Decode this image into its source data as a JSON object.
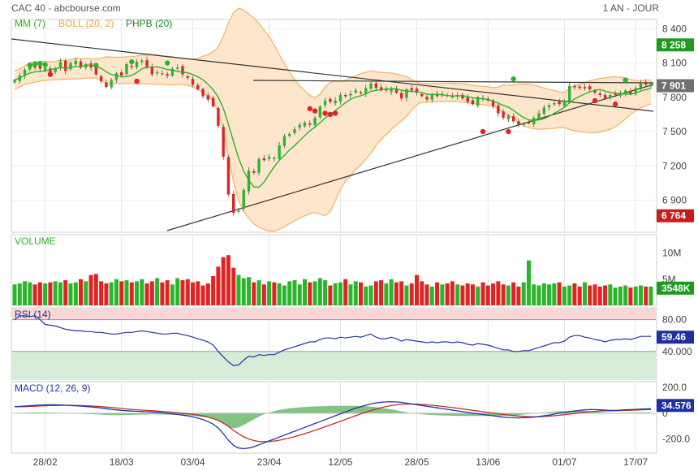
{
  "header": {
    "left": "CAC 40 - abcbourse.com",
    "right": "1 AN - JOUR"
  },
  "colors": {
    "mm": "#2ab52a",
    "boll_line": "#f2b266",
    "boll_fill": "#fde6cc",
    "up": "#2ab52a",
    "down": "#e02424",
    "rsi_top": "#fbd6d6",
    "rsi_bottom": "#d7ecd7",
    "rsi_line": "#2434a8",
    "macd_line": "#2434a8",
    "signal_line": "#c0302a",
    "hist": "#6cb86c",
    "badge_gray": "#707070",
    "badge_green": "#1e9a1e",
    "badge_red": "#c41e1e",
    "badge_blue": "#1f2fa0"
  },
  "chart_data": [
    {
      "type": "candlestick",
      "legend": [
        {
          "label": "MM (7)",
          "color": "#2ab52a"
        },
        {
          "label": "BOLL (20, 2)",
          "color": "#f2a64a"
        },
        {
          "label": "PHPB (20)",
          "color": "#1e8a1e"
        }
      ],
      "x_tick_labels": [
        "28/02",
        "18/03",
        "03/04",
        "23/04",
        "12/05",
        "28/05",
        "13/06",
        "01/07",
        "17/07"
      ],
      "y_ticks": [
        8400,
        8100,
        7800,
        7500,
        7200,
        6900
      ],
      "ylim": [
        6620,
        8480
      ],
      "badges": [
        {
          "label": "8 258",
          "value": 8258,
          "color": "green"
        },
        {
          "label": "7 901",
          "value": 7901,
          "color": "gray"
        },
        {
          "label": "6 764",
          "value": 6764,
          "color": "red"
        }
      ],
      "close": [
        7950,
        7990,
        8040,
        8070,
        8060,
        8050,
        8060,
        8020,
        8050,
        8110,
        8030,
        8100,
        8120,
        8060,
        8090,
        8060,
        8000,
        7940,
        7890,
        7950,
        8010,
        7990,
        8090,
        8070,
        8110,
        8120,
        8060,
        8000,
        8020,
        8010,
        7990,
        8050,
        8060,
        8000,
        7970,
        7910,
        7870,
        7810,
        7780,
        7720,
        7550,
        7280,
        6950,
        6790,
        6810,
        6990,
        7160,
        7140,
        7260,
        7250,
        7280,
        7270,
        7380,
        7460,
        7480,
        7520,
        7560,
        7580,
        7560,
        7620,
        7720,
        7770,
        7760,
        7770,
        7820,
        7810,
        7830,
        7860,
        7840,
        7880,
        7920,
        7880,
        7860,
        7860,
        7880,
        7840,
        7790,
        7870,
        7860,
        7840,
        7810,
        7780,
        7820,
        7810,
        7830,
        7820,
        7810,
        7820,
        7790,
        7760,
        7740,
        7800,
        7790,
        7770,
        7720,
        7660,
        7620,
        7640,
        7590,
        7560,
        7570,
        7580,
        7620,
        7660,
        7710,
        7730,
        7750,
        7740,
        7770,
        7900,
        7890,
        7880,
        7880,
        7870,
        7840,
        7820,
        7790,
        7820,
        7830,
        7840,
        7860,
        7830,
        7880,
        7920,
        7910,
        7920
      ],
      "volume_ticks": [
        "10M",
        "5M"
      ],
      "volume_badge": "3548K",
      "volume_share_of_10M": [
        0.4,
        0.42,
        0.46,
        0.44,
        0.4,
        0.44,
        0.42,
        0.44,
        0.46,
        0.44,
        0.48,
        0.42,
        0.44,
        0.5,
        0.46,
        0.58,
        0.6,
        0.46,
        0.42,
        0.44,
        0.5,
        0.46,
        0.48,
        0.44,
        0.46,
        0.5,
        0.42,
        0.46,
        0.52,
        0.44,
        0.48,
        0.4,
        0.52,
        0.48,
        0.5,
        0.44,
        0.46,
        0.38,
        0.42,
        0.56,
        0.74,
        0.92,
        0.96,
        0.72,
        0.58,
        0.52,
        0.54,
        0.44,
        0.48,
        0.4,
        0.46,
        0.44,
        0.42,
        0.38,
        0.46,
        0.48,
        0.4,
        0.5,
        0.44,
        0.46,
        0.52,
        0.48,
        0.38,
        0.42,
        0.44,
        0.5,
        0.4,
        0.46,
        0.44,
        0.36,
        0.38,
        0.46,
        0.48,
        0.42,
        0.5,
        0.44,
        0.46,
        0.38,
        0.42,
        0.58,
        0.46,
        0.4,
        0.36,
        0.44,
        0.4,
        0.42,
        0.46,
        0.4,
        0.38,
        0.42,
        0.4,
        0.36,
        0.44,
        0.38,
        0.42,
        0.46,
        0.4,
        0.38,
        0.44,
        0.36,
        0.44,
        0.86,
        0.4,
        0.38,
        0.42,
        0.4,
        0.42,
        0.44,
        0.36,
        0.38,
        0.42,
        0.36,
        0.44,
        0.38,
        0.4,
        0.36,
        0.38,
        0.4,
        0.34,
        0.36,
        0.38,
        0.34,
        0.36,
        0.38,
        0.36,
        0.36
      ],
      "rsi": {
        "label": "RSI (14)",
        "ticks": [
          80.0,
          40.0
        ],
        "tick_labels": [
          "80.00",
          "40.000"
        ],
        "ylim": [
          5,
          95
        ],
        "badge": "59.46",
        "values": [
          80,
          85,
          85,
          84,
          85,
          80,
          74,
          73,
          72,
          70,
          68,
          67,
          66,
          66,
          65,
          65,
          64,
          64,
          63,
          62,
          62,
          63,
          64,
          64,
          65,
          66,
          65,
          64,
          63,
          62,
          62,
          63,
          63,
          61,
          60,
          58,
          56,
          54,
          52,
          48,
          40,
          33,
          27,
          22,
          23,
          29,
          34,
          33,
          36,
          35,
          36,
          36,
          39,
          42,
          44,
          46,
          48,
          50,
          52,
          52,
          55,
          57,
          57,
          56,
          58,
          57,
          58,
          59,
          58,
          60,
          62,
          58,
          56,
          56,
          58,
          56,
          53,
          55,
          54,
          53,
          52,
          51,
          52,
          51,
          52,
          52,
          51,
          52,
          51,
          49,
          48,
          50,
          49,
          48,
          46,
          44,
          42,
          42,
          40,
          40,
          41,
          41,
          43,
          45,
          47,
          49,
          51,
          51,
          53,
          58,
          60,
          60,
          58,
          57,
          55,
          54,
          52,
          54,
          55,
          55,
          56,
          55,
          57,
          59,
          59,
          59
        ]
      },
      "macd": {
        "label": "MACD (12, 26, 9)",
        "ticks": [
          200.0,
          0,
          -200.0
        ],
        "tick_labels": [
          "200.0",
          "0",
          "-200.0"
        ],
        "ylim": [
          -310,
          245
        ],
        "badge": "34.576",
        "macd": [
          50,
          53,
          56,
          58,
          61,
          63,
          65,
          65,
          65,
          64,
          62,
          60,
          58,
          55,
          52,
          49,
          45,
          40,
          35,
          30,
          26,
          22,
          19,
          17,
          15,
          13,
          11,
          9,
          7,
          4,
          0,
          -5,
          -10,
          -15,
          -20,
          -28,
          -38,
          -50,
          -65,
          -85,
          -115,
          -160,
          -210,
          -250,
          -270,
          -275,
          -270,
          -260,
          -245,
          -230,
          -215,
          -200,
          -185,
          -170,
          -155,
          -140,
          -125,
          -110,
          -95,
          -80,
          -65,
          -50,
          -35,
          -20,
          -5,
          10,
          25,
          38,
          50,
          62,
          72,
          80,
          85,
          88,
          90,
          88,
          84,
          78,
          72,
          66,
          60,
          54,
          48,
          42,
          36,
          30,
          24,
          18,
          12,
          6,
          0,
          -5,
          -10,
          -15,
          -20,
          -25,
          -30,
          -33,
          -35,
          -36,
          -35,
          -33,
          -30,
          -25,
          -20,
          -15,
          -8,
          0,
          5,
          12,
          18,
          22,
          26,
          28,
          28,
          26,
          24,
          22,
          22,
          24,
          26,
          28,
          30,
          32,
          34,
          35
        ]
      }
    }
  ]
}
